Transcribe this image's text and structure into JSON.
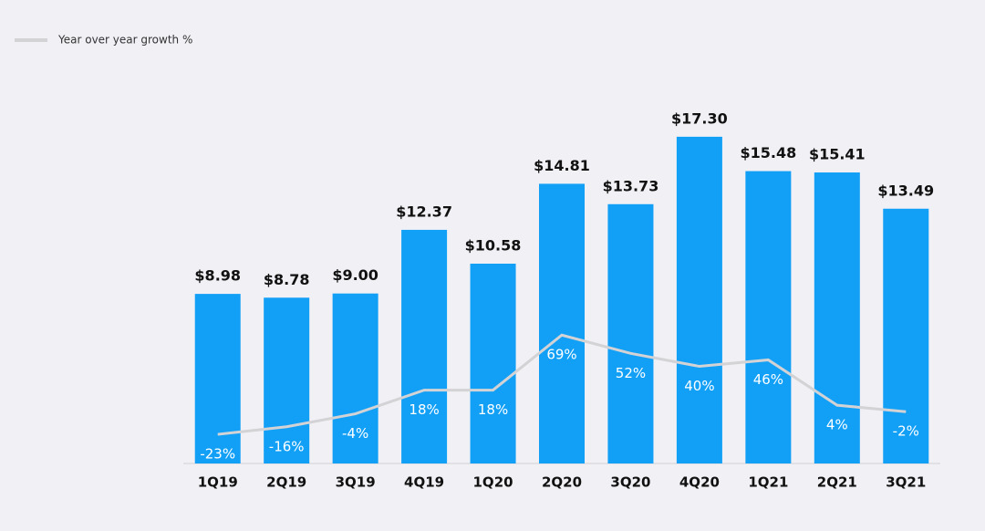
{
  "chart_data": {
    "type": "bar",
    "categories": [
      "1Q19",
      "2Q19",
      "3Q19",
      "4Q19",
      "1Q20",
      "2Q20",
      "3Q20",
      "4Q20",
      "1Q21",
      "2Q21",
      "3Q21"
    ],
    "series": [
      {
        "type": "bar",
        "color": "#12a0f7",
        "values": [
          8.98,
          8.78,
          9.0,
          12.37,
          10.58,
          14.81,
          13.73,
          17.3,
          15.48,
          15.41,
          13.49
        ],
        "value_labels": [
          "$8.98",
          "$8.78",
          "$9.00",
          "$12.37",
          "$10.58",
          "$14.81",
          "$13.73",
          "$17.30",
          "$15.48",
          "$15.41",
          "$13.49"
        ]
      },
      {
        "type": "line",
        "name": "Year over year growth %",
        "color": "#d3d3d6",
        "axis": "y2",
        "values": [
          -23,
          -16,
          -4,
          18,
          18,
          69,
          52,
          40,
          46,
          4,
          -2
        ],
        "value_labels": [
          "-23%",
          "-16%",
          "-4%",
          "18%",
          "18%",
          "69%",
          "52%",
          "40%",
          "46%",
          "4%",
          "-2%"
        ]
      }
    ],
    "ylim": [
      0,
      20
    ],
    "y2lim": [
      -50,
      300
    ],
    "legend": "top-left"
  }
}
